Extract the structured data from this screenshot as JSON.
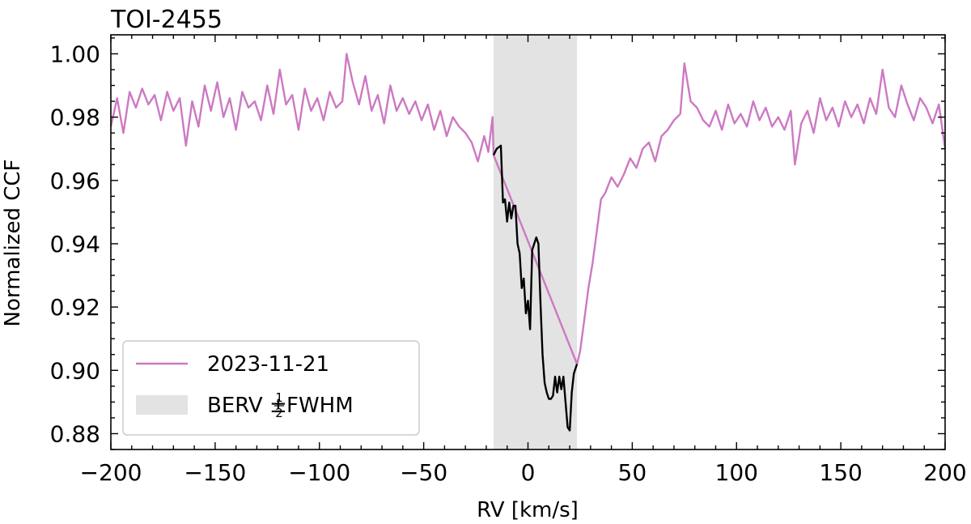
{
  "chart_data": {
    "type": "line",
    "title": "TOI-2455",
    "xlabel": "RV [km/s]",
    "ylabel": "Normalized CCF",
    "xlim": [
      -200,
      200
    ],
    "ylim": [
      0.875,
      1.006
    ],
    "xticks": [
      -200,
      -150,
      -100,
      -50,
      0,
      50,
      100,
      150,
      200
    ],
    "xtick_labels": [
      "−200",
      "−150",
      "−100",
      "−50",
      "0",
      "50",
      "100",
      "150",
      "200"
    ],
    "yticks": [
      0.88,
      0.9,
      0.92,
      0.94,
      0.96,
      0.98,
      1.0
    ],
    "ytick_labels": [
      "0.88",
      "0.90",
      "0.92",
      "0.94",
      "0.96",
      "0.98",
      "1.00"
    ],
    "shaded_region": {
      "label": "BERV ± ½FWHM",
      "x_range": [
        -16.5,
        23.5
      ],
      "color": "#e3e3e3"
    },
    "series": [
      {
        "name": "2023-11-21",
        "color": "#cc79c3",
        "x": [
          -200,
          -197,
          -194,
          -191,
          -188,
          -185,
          -182,
          -179,
          -176,
          -173,
          -170,
          -167,
          -164,
          -161,
          -158,
          -155,
          -152,
          -149,
          -146,
          -143,
          -140,
          -137,
          -134,
          -131,
          -128,
          -125,
          -122,
          -119,
          -116,
          -113,
          -110,
          -107,
          -104,
          -101,
          -98,
          -95,
          -92,
          -89,
          -87,
          -84,
          -81,
          -78,
          -75,
          -72,
          -69,
          -66,
          -63,
          -60,
          -57,
          -54,
          -51,
          -48,
          -45,
          -42,
          -39,
          -36,
          -33,
          -30,
          -27,
          -24,
          -21,
          -19,
          -17,
          -16.5,
          23.5,
          25,
          27,
          29,
          31,
          33,
          35,
          37,
          40,
          43,
          46,
          49,
          52,
          55,
          58,
          61,
          64,
          67,
          70,
          73,
          75,
          78,
          81,
          84,
          87,
          90,
          93,
          96,
          99,
          102,
          105,
          108,
          111,
          114,
          117,
          120,
          123,
          126,
          128,
          131,
          134,
          137,
          140,
          143,
          146,
          149,
          152,
          155,
          158,
          161,
          164,
          167,
          170,
          173,
          176,
          179,
          182,
          185,
          188,
          191,
          194,
          197,
          200
        ],
        "y": [
          0.977,
          0.986,
          0.975,
          0.988,
          0.983,
          0.989,
          0.984,
          0.987,
          0.979,
          0.988,
          0.982,
          0.986,
          0.971,
          0.985,
          0.977,
          0.99,
          0.982,
          0.991,
          0.98,
          0.986,
          0.976,
          0.988,
          0.983,
          0.985,
          0.979,
          0.99,
          0.981,
          0.995,
          0.984,
          0.987,
          0.976,
          0.989,
          0.982,
          0.986,
          0.979,
          0.988,
          0.983,
          0.985,
          1.0,
          0.991,
          0.984,
          0.993,
          0.982,
          0.987,
          0.978,
          0.99,
          0.982,
          0.986,
          0.981,
          0.985,
          0.979,
          0.984,
          0.976,
          0.982,
          0.974,
          0.98,
          0.977,
          0.975,
          0.972,
          0.966,
          0.974,
          0.969,
          0.98,
          0.968,
          0.902,
          0.906,
          0.916,
          0.926,
          0.934,
          0.944,
          0.954,
          0.956,
          0.961,
          0.958,
          0.962,
          0.967,
          0.964,
          0.97,
          0.972,
          0.966,
          0.974,
          0.976,
          0.979,
          0.981,
          0.997,
          0.985,
          0.983,
          0.979,
          0.977,
          0.982,
          0.976,
          0.984,
          0.978,
          0.981,
          0.977,
          0.985,
          0.979,
          0.983,
          0.977,
          0.98,
          0.976,
          0.982,
          0.965,
          0.978,
          0.982,
          0.975,
          0.986,
          0.979,
          0.983,
          0.977,
          0.985,
          0.98,
          0.984,
          0.978,
          0.986,
          0.981,
          0.995,
          0.983,
          0.98,
          0.99,
          0.984,
          0.979,
          0.986,
          0.983,
          0.978,
          0.984,
          0.97
        ]
      },
      {
        "name": "",
        "color": "#000000",
        "x": [
          -16.5,
          -15,
          -13,
          -12,
          -11,
          -10,
          -9,
          -8,
          -7,
          -6,
          -5,
          -4,
          -3,
          -2,
          -1,
          0,
          1,
          2,
          3,
          4,
          5,
          6,
          7,
          8,
          9,
          10,
          11,
          12,
          13,
          14,
          15,
          16,
          17,
          18,
          19,
          20,
          21,
          22,
          23.5
        ],
        "y": [
          0.968,
          0.97,
          0.971,
          0.953,
          0.954,
          0.947,
          0.953,
          0.948,
          0.952,
          0.952,
          0.94,
          0.937,
          0.926,
          0.929,
          0.918,
          0.922,
          0.913,
          0.938,
          0.94,
          0.942,
          0.94,
          0.921,
          0.905,
          0.896,
          0.893,
          0.891,
          0.891,
          0.892,
          0.898,
          0.893,
          0.898,
          0.894,
          0.898,
          0.89,
          0.882,
          0.881,
          0.893,
          0.899,
          0.902
        ]
      }
    ],
    "legend": {
      "position": "lower-left",
      "entries": [
        "2023-11-21",
        "BERV ± ½FWHM"
      ]
    },
    "grid": false
  }
}
